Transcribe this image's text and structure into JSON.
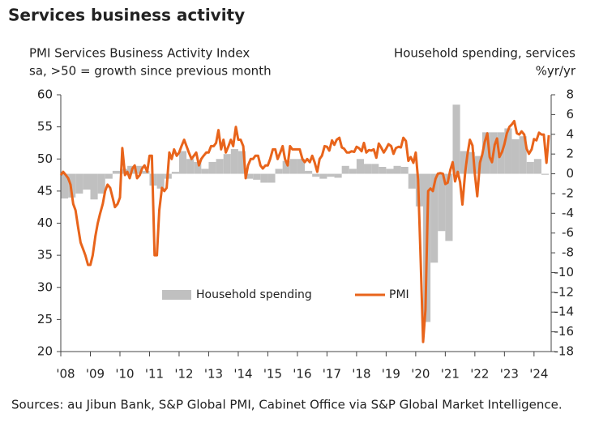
{
  "chart_data": {
    "type": "bar-line",
    "title": "Services business activity",
    "y_label_lines": [
      "PMI Services Business Activity Index",
      "sa, >50 = growth since previous month"
    ],
    "y2_label_lines": [
      "Household spending, services",
      "%yr/yr"
    ],
    "source": "Sources: au Jibun Bank, S&P Global PMI, Cabinet Office via S&P Global Market Intelligence.",
    "xlim": [
      2008,
      2024.58
    ],
    "xticks": [
      {
        "value": 2008,
        "label": "'08"
      },
      {
        "value": 2009,
        "label": "'09"
      },
      {
        "value": 2010,
        "label": "'10"
      },
      {
        "value": 2011,
        "label": "'11"
      },
      {
        "value": 2012,
        "label": "'12"
      },
      {
        "value": 2013,
        "label": "'13"
      },
      {
        "value": 2014,
        "label": "'14"
      },
      {
        "value": 2015,
        "label": "'15"
      },
      {
        "value": 2016,
        "label": "'16"
      },
      {
        "value": 2017,
        "label": "'17"
      },
      {
        "value": 2018,
        "label": "'18"
      },
      {
        "value": 2019,
        "label": "'19"
      },
      {
        "value": 2020,
        "label": "'20"
      },
      {
        "value": 2021,
        "label": "'21"
      },
      {
        "value": 2022,
        "label": "'22"
      },
      {
        "value": 2023,
        "label": "'23"
      },
      {
        "value": 2024,
        "label": "'24"
      }
    ],
    "ylim": [
      20,
      60
    ],
    "yticks": [
      20,
      25,
      30,
      35,
      40,
      45,
      50,
      55,
      60
    ],
    "y2lim": [
      -18,
      8
    ],
    "y2ticks": [
      -18,
      -16,
      -14,
      -12,
      -10,
      -8,
      -6,
      -4,
      -2,
      0,
      2,
      4,
      6,
      8
    ],
    "series": [
      {
        "name": "Household spending",
        "type": "bar",
        "axis": "y2",
        "color": "#c0c0c0",
        "x": [
          2008,
          2008.25,
          2008.5,
          2008.75,
          2009,
          2009.25,
          2009.5,
          2009.75,
          2010,
          2010.25,
          2010.5,
          2010.75,
          2011,
          2011.25,
          2011.5,
          2011.75,
          2012,
          2012.25,
          2012.5,
          2012.75,
          2013,
          2013.25,
          2013.5,
          2013.75,
          2014,
          2014.25,
          2014.5,
          2014.75,
          2015,
          2015.25,
          2015.5,
          2015.75,
          2016,
          2016.25,
          2016.5,
          2016.75,
          2017,
          2017.25,
          2017.5,
          2017.75,
          2018,
          2018.25,
          2018.5,
          2018.75,
          2019,
          2019.25,
          2019.5,
          2019.75,
          2020,
          2020.25,
          2020.5,
          2020.75,
          2021,
          2021.25,
          2021.5,
          2021.75,
          2022,
          2022.25,
          2022.5,
          2022.75,
          2023,
          2023.25,
          2023.5,
          2023.75,
          2024,
          2024.25
        ],
        "values": [
          -2.5,
          -2.4,
          -2,
          -1.6,
          -2.6,
          -2,
          -0.5,
          0.3,
          0.5,
          0.8,
          0.8,
          0.3,
          -1.2,
          -1.5,
          -0.5,
          0.2,
          2.3,
          1.5,
          1.2,
          0.5,
          1.2,
          1.5,
          2,
          2.5,
          2.3,
          -0.5,
          -0.6,
          -0.9,
          -0.9,
          0.5,
          1.3,
          1.5,
          1.5,
          0.3,
          -0.3,
          -0.5,
          -0.3,
          -0.4,
          0.8,
          0.5,
          1.5,
          1,
          1,
          0.7,
          0.5,
          0.8,
          0.7,
          -1.5,
          -3.3,
          -15,
          -9,
          -5.8,
          -6.8,
          7,
          2.3,
          2.2,
          1.8,
          4.2,
          4.2,
          4.2,
          4.6,
          3.5,
          3.8,
          1.2,
          1.5,
          -0.1
        ]
      },
      {
        "name": "PMI",
        "type": "line",
        "axis": "y",
        "color": "#e8641b",
        "x": [
          2008,
          2008.08,
          2008.17,
          2008.25,
          2008.33,
          2008.42,
          2008.5,
          2008.58,
          2008.67,
          2008.75,
          2008.83,
          2008.92,
          2009,
          2009.08,
          2009.17,
          2009.25,
          2009.33,
          2009.42,
          2009.5,
          2009.58,
          2009.67,
          2009.75,
          2009.83,
          2009.92,
          2010,
          2010.08,
          2010.17,
          2010.25,
          2010.33,
          2010.42,
          2010.5,
          2010.58,
          2010.67,
          2010.75,
          2010.83,
          2010.92,
          2011,
          2011.08,
          2011.17,
          2011.25,
          2011.33,
          2011.42,
          2011.5,
          2011.58,
          2011.67,
          2011.75,
          2011.83,
          2011.92,
          2012,
          2012.08,
          2012.17,
          2012.25,
          2012.33,
          2012.42,
          2012.5,
          2012.58,
          2012.67,
          2012.75,
          2012.83,
          2012.92,
          2013,
          2013.08,
          2013.17,
          2013.25,
          2013.33,
          2013.42,
          2013.5,
          2013.58,
          2013.67,
          2013.75,
          2013.83,
          2013.92,
          2014,
          2014.08,
          2014.17,
          2014.25,
          2014.33,
          2014.42,
          2014.5,
          2014.58,
          2014.67,
          2014.75,
          2014.83,
          2014.92,
          2015,
          2015.08,
          2015.17,
          2015.25,
          2015.33,
          2015.42,
          2015.5,
          2015.58,
          2015.67,
          2015.75,
          2015.83,
          2015.92,
          2016,
          2016.08,
          2016.17,
          2016.25,
          2016.33,
          2016.42,
          2016.5,
          2016.58,
          2016.67,
          2016.75,
          2016.83,
          2016.92,
          2017,
          2017.08,
          2017.17,
          2017.25,
          2017.33,
          2017.42,
          2017.5,
          2017.58,
          2017.67,
          2017.75,
          2017.83,
          2017.92,
          2018,
          2018.08,
          2018.17,
          2018.25,
          2018.33,
          2018.42,
          2018.5,
          2018.58,
          2018.67,
          2018.75,
          2018.83,
          2018.92,
          2019,
          2019.08,
          2019.17,
          2019.25,
          2019.33,
          2019.42,
          2019.5,
          2019.58,
          2019.67,
          2019.75,
          2019.83,
          2019.92,
          2020,
          2020.08,
          2020.17,
          2020.25,
          2020.33,
          2020.42,
          2020.5,
          2020.58,
          2020.67,
          2020.75,
          2020.83,
          2020.92,
          2021,
          2021.08,
          2021.17,
          2021.25,
          2021.33,
          2021.42,
          2021.5,
          2021.58,
          2021.67,
          2021.75,
          2021.83,
          2021.92,
          2022,
          2022.08,
          2022.17,
          2022.25,
          2022.33,
          2022.42,
          2022.5,
          2022.58,
          2022.67,
          2022.75,
          2022.83,
          2022.92,
          2023,
          2023.08,
          2023.17,
          2023.25,
          2023.33,
          2023.42,
          2023.5,
          2023.58,
          2023.67,
          2023.75,
          2023.83,
          2023.92,
          2024,
          2024.08,
          2024.17,
          2024.25,
          2024.33,
          2024.42,
          2024.5
        ],
        "values": [
          47.5,
          48,
          47.5,
          47,
          46,
          43,
          42,
          39.5,
          37,
          36,
          35,
          33.5,
          33.5,
          35,
          38,
          40,
          41.5,
          43,
          45,
          46,
          45.5,
          44,
          42.5,
          43,
          44,
          51.7,
          47.5,
          48,
          47,
          48.5,
          49,
          47,
          47.5,
          48.5,
          49,
          48,
          50.5,
          50.5,
          35,
          35,
          42,
          45.5,
          45,
          45.5,
          51,
          50,
          51.5,
          50.5,
          51,
          52,
          53,
          52,
          51,
          50,
          50.5,
          51,
          49,
          50,
          50.5,
          51,
          51,
          52,
          52,
          52.5,
          54.5,
          51.5,
          53,
          51,
          52,
          53,
          52,
          55,
          53,
          53,
          52,
          47,
          49,
          50,
          50,
          50.5,
          50.5,
          49,
          48.5,
          49,
          49,
          50,
          51.5,
          51.5,
          50,
          51,
          52,
          50,
          49,
          52,
          51.5,
          51.5,
          51.5,
          51.5,
          50,
          49.5,
          50,
          49.5,
          50.5,
          49.5,
          48,
          50,
          50.5,
          52,
          51.9,
          51.3,
          52.9,
          52.2,
          53,
          53.3,
          51.8,
          51.6,
          51,
          51,
          51.2,
          51.1,
          51.9,
          51.7,
          51.2,
          52.5,
          51,
          51.4,
          51.3,
          51.5,
          50.2,
          52.4,
          51.8,
          51,
          51.6,
          52.3,
          52,
          50.8,
          51.7,
          51.9,
          51.8,
          53.3,
          52.8,
          49.7,
          50.3,
          49.4,
          51,
          46.8,
          33.8,
          21.5,
          26.5,
          45,
          45.4,
          45,
          46.9,
          47.7,
          47.8,
          47.7,
          46.1,
          46.3,
          48.3,
          49.5,
          46.5,
          48,
          46.4,
          42.9,
          47.8,
          50.7,
          53,
          52.1,
          47.6,
          44.2,
          49.4,
          50.7,
          52.6,
          54,
          50.3,
          49.5,
          52.2,
          53.2,
          50.3,
          51.1,
          52.3,
          54,
          55,
          55.4,
          55.9,
          54,
          53.8,
          54.3,
          53.8,
          51.6,
          50.8,
          51.5,
          53.1,
          52.9,
          54.1,
          53.8,
          53.8,
          49.4,
          53.7
        ]
      }
    ]
  }
}
